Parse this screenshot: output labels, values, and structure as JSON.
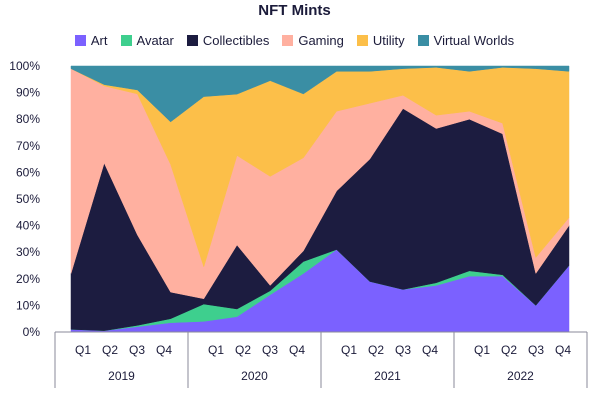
{
  "chart_data": {
    "type": "area",
    "stacked": "percent",
    "title": "NFT Mints",
    "legend_position": "top",
    "grid": false,
    "ylim": [
      0,
      100
    ],
    "y_ticks": [
      "0%",
      "10%",
      "20%",
      "30%",
      "40%",
      "50%",
      "60%",
      "70%",
      "80%",
      "90%",
      "100%"
    ],
    "x_groups": [
      {
        "label": "2019",
        "quarters": [
          "Q1",
          "Q2",
          "Q3",
          "Q4"
        ]
      },
      {
        "label": "2020",
        "quarters": [
          "Q1",
          "Q2",
          "Q3",
          "Q4"
        ]
      },
      {
        "label": "2021",
        "quarters": [
          "Q1",
          "Q2",
          "Q3",
          "Q4"
        ]
      },
      {
        "label": "2022",
        "quarters": [
          "Q1",
          "Q2",
          "Q3",
          "Q4"
        ]
      }
    ],
    "x": [
      "2019 Q1",
      "2019 Q2",
      "2019 Q3",
      "2019 Q4",
      "2020 Q1",
      "2020 Q2",
      "2020 Q3",
      "2020 Q4",
      "2021 Q1",
      "2021 Q2",
      "2021 Q3",
      "2021 Q4",
      "2022 Q1",
      "2022 Q2",
      "2022 Q3",
      "2022 Q4"
    ],
    "series": [
      {
        "name": "Art",
        "color": "#7b61ff",
        "values": [
          1,
          0.5,
          2,
          3.5,
          4,
          6,
          14,
          22,
          31,
          19,
          16,
          17.5,
          21,
          21,
          10,
          25
        ]
      },
      {
        "name": "Avatar",
        "color": "#3ecf8e",
        "values": [
          0,
          0,
          0.5,
          1.5,
          6.5,
          3,
          1.5,
          4.5,
          0,
          0,
          0,
          1,
          2,
          0.5,
          0,
          0
        ]
      },
      {
        "name": "Collectibles",
        "color": "#1c1c40",
        "values": [
          21,
          63,
          34,
          10,
          2,
          25,
          2,
          4,
          22,
          46,
          68,
          58,
          57,
          53,
          12,
          15
        ]
      },
      {
        "name": "Gaming",
        "color": "#ffb0a0",
        "values": [
          77,
          29,
          53,
          48,
          12,
          35,
          41,
          35,
          30,
          21,
          5,
          5,
          3,
          4,
          6,
          3
        ]
      },
      {
        "name": "Utility",
        "color": "#fcbf49",
        "values": [
          0,
          0.5,
          1.5,
          16,
          64,
          24,
          36,
          24,
          15,
          12,
          10,
          18,
          15,
          21,
          71,
          55
        ]
      },
      {
        "name": "Virtual Worlds",
        "color": "#3a8ea4",
        "values": [
          1,
          7,
          9,
          21,
          11.5,
          11,
          5.5,
          10.5,
          2,
          2,
          1,
          0.5,
          2,
          0.5,
          1,
          2
        ]
      }
    ]
  }
}
